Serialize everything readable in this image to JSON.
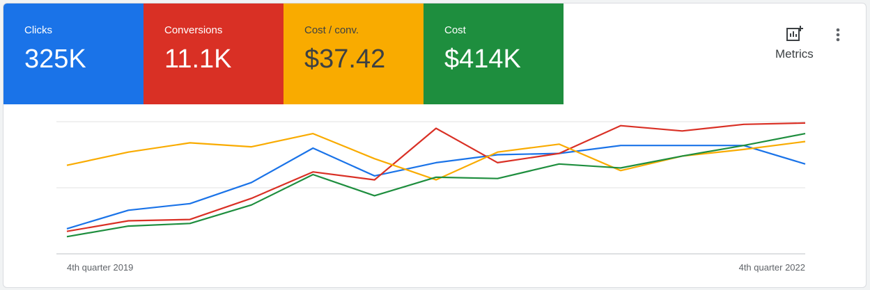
{
  "chart_data": {
    "type": "line",
    "categories": [
      "4th quarter 2019",
      null,
      null,
      null,
      null,
      null,
      null,
      null,
      null,
      null,
      null,
      null,
      "4th quarter 2022"
    ],
    "ylim": [
      0,
      100
    ],
    "yticks": [
      0,
      50,
      100
    ],
    "grid": true,
    "series": [
      {
        "name": "Clicks",
        "color": "#1a73e8",
        "values": [
          19,
          33,
          38,
          54,
          80,
          59,
          69,
          75,
          76,
          82,
          82,
          82,
          68
        ]
      },
      {
        "name": "Conversions",
        "color": "#d93025",
        "values": [
          17,
          25,
          26,
          42,
          62,
          56,
          95,
          69,
          76,
          97,
          93,
          98,
          99
        ]
      },
      {
        "name": "Cost / conv.",
        "color": "#f9ab00",
        "values": [
          67,
          77,
          84,
          81,
          91,
          72,
          56,
          77,
          83,
          63,
          74,
          79,
          85
        ]
      },
      {
        "name": "Cost",
        "color": "#1e8e3e",
        "values": [
          13,
          21,
          23,
          37,
          60,
          44,
          58,
          57,
          68,
          65,
          74,
          82,
          91
        ]
      }
    ]
  },
  "scorecards": [
    {
      "value": "325K"
    },
    {
      "value": "11.1K"
    },
    {
      "value": "$37.42"
    },
    {
      "value": "$414K"
    }
  ],
  "toolbar": {
    "metrics_button": "Metrics"
  }
}
